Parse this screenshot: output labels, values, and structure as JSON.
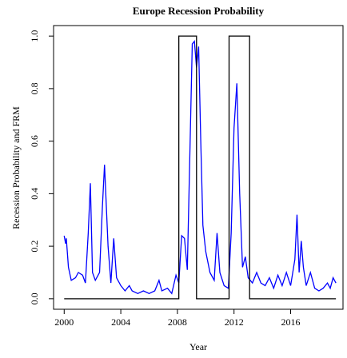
{
  "chart_data": {
    "type": "line",
    "title": "Europe Recession Probability",
    "x_label": "Year",
    "y_label": "Recession Probability and FRM",
    "xlim": [
      1999.25,
      2019.7
    ],
    "xticks": [
      2000,
      2004,
      2008,
      2012,
      2016
    ],
    "ylim": [
      -0.04,
      1.04
    ],
    "yticks": [
      {
        "value": 0,
        "label": "0.0"
      },
      0.2,
      0.4,
      0.6,
      0.8,
      {
        "value": 1,
        "label": "1.0"
      }
    ],
    "series": [
      {
        "color": "#0000ff",
        "x": [
          2000.0,
          2000.1,
          2000.15,
          2000.3,
          2000.5,
          2000.8,
          2001.0,
          2001.3,
          2001.5,
          2001.7,
          2001.85,
          2002.0,
          2002.2,
          2002.5,
          2002.7,
          2002.85,
          2003.1,
          2003.3,
          2003.5,
          2003.7,
          2004.0,
          2004.3,
          2004.6,
          2004.8,
          2005.2,
          2005.6,
          2006.0,
          2006.4,
          2006.7,
          2006.9,
          2007.3,
          2007.6,
          2007.9,
          2008.1,
          2008.3,
          2008.5,
          2008.7,
          2008.9,
          2009.05,
          2009.2,
          2009.35,
          2009.5,
          2009.65,
          2009.8,
          2010.0,
          2010.3,
          2010.6,
          2010.8,
          2011.0,
          2011.3,
          2011.6,
          2011.8,
          2012.0,
          2012.2,
          2012.4,
          2012.6,
          2012.8,
          2013.0,
          2013.3,
          2013.6,
          2013.9,
          2014.2,
          2014.5,
          2014.8,
          2015.1,
          2015.4,
          2015.7,
          2016.0,
          2016.3,
          2016.45,
          2016.6,
          2016.75,
          2016.9,
          2017.1,
          2017.4,
          2017.7,
          2018.0,
          2018.3,
          2018.6,
          2018.8,
          2019.0,
          2019.2
        ],
        "values": [
          0.24,
          0.21,
          0.23,
          0.12,
          0.07,
          0.08,
          0.1,
          0.09,
          0.06,
          0.25,
          0.44,
          0.1,
          0.07,
          0.1,
          0.35,
          0.51,
          0.2,
          0.06,
          0.23,
          0.08,
          0.05,
          0.03,
          0.05,
          0.03,
          0.02,
          0.03,
          0.02,
          0.03,
          0.07,
          0.03,
          0.04,
          0.02,
          0.09,
          0.06,
          0.24,
          0.23,
          0.11,
          0.6,
          0.97,
          0.98,
          0.88,
          0.96,
          0.6,
          0.28,
          0.18,
          0.1,
          0.07,
          0.25,
          0.1,
          0.05,
          0.04,
          0.25,
          0.65,
          0.82,
          0.4,
          0.12,
          0.16,
          0.08,
          0.06,
          0.1,
          0.06,
          0.05,
          0.08,
          0.04,
          0.09,
          0.05,
          0.1,
          0.05,
          0.15,
          0.32,
          0.1,
          0.22,
          0.12,
          0.05,
          0.1,
          0.04,
          0.03,
          0.04,
          0.06,
          0.04,
          0.08,
          0.06
        ]
      },
      {
        "color": "#000000",
        "x": [
          2000.0,
          2008.1,
          2008.1,
          2009.35,
          2009.35,
          2011.65,
          2011.65,
          2013.1,
          2013.1,
          2019.2
        ],
        "values": [
          0,
          0,
          1,
          1,
          0,
          0,
          1,
          1,
          0,
          0
        ]
      }
    ]
  }
}
